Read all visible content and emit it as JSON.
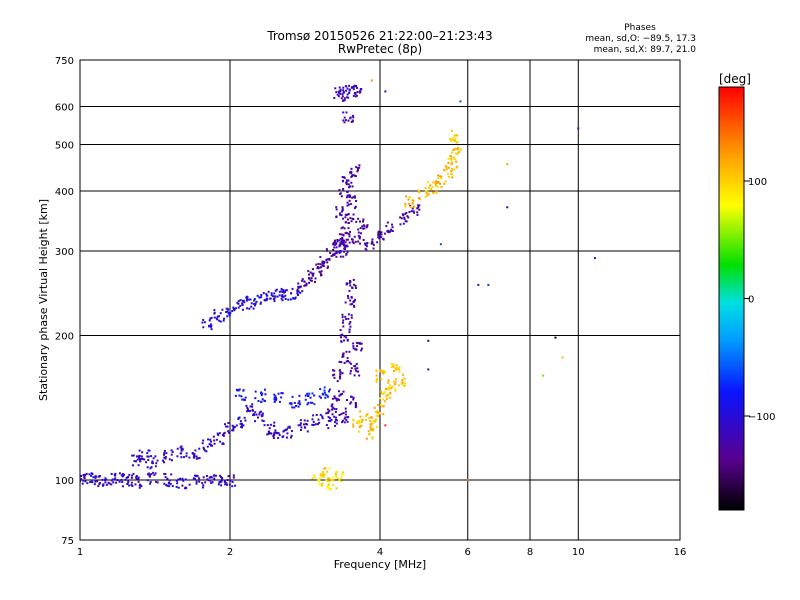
{
  "chart_data": {
    "type": "scatter",
    "title": "Tromsø 20150526 21:22:00–21:23:43",
    "subtitle": "RwPretec (8p)",
    "xlabel": "Frequency [MHz]",
    "ylabel": "Stationary phase Virtual Height [km]",
    "x_scale": "log",
    "y_scale": "log",
    "xlim": [
      1,
      16
    ],
    "ylim": [
      75,
      750
    ],
    "x_ticks": [
      1,
      2,
      4,
      6,
      8,
      10,
      16
    ],
    "y_ticks": [
      75,
      100,
      200,
      300,
      400,
      500,
      600,
      750
    ],
    "grid": true,
    "phases_box": {
      "title": "Phases",
      "line1": "mean, sd,O: −89.5, 17.3",
      "line2": "mean, sd,X:  89.7, 21.0"
    },
    "colorbar": {
      "label": "[deg]",
      "range": [
        -180,
        180
      ],
      "ticks": [
        100,
        0,
        -100
      ],
      "tick_labels": [
        "100",
        "0",
        "−100"
      ]
    },
    "clusters": [
      {
        "points": [
          [
            1.0,
            100
          ],
          [
            1.05,
            101
          ],
          [
            1.1,
            99
          ],
          [
            1.15,
            100
          ],
          [
            1.2,
            101
          ],
          [
            1.25,
            100
          ],
          [
            1.3,
            99
          ],
          [
            1.4,
            101
          ],
          [
            1.5,
            100
          ],
          [
            1.6,
            99
          ],
          [
            1.7,
            100
          ],
          [
            1.8,
            99
          ],
          [
            1.9,
            100
          ],
          [
            2.0,
            100
          ]
        ],
        "phase": -110
      },
      {
        "points": [
          [
            1.3,
            110
          ],
          [
            1.35,
            112
          ],
          [
            1.4,
            109
          ],
          [
            1.5,
            112
          ],
          [
            1.6,
            115
          ],
          [
            1.7,
            113
          ],
          [
            1.8,
            118
          ],
          [
            1.9,
            122
          ],
          [
            2.0,
            128
          ],
          [
            2.1,
            132
          ],
          [
            2.2,
            140
          ],
          [
            2.3,
            136
          ],
          [
            2.4,
            128
          ],
          [
            2.5,
            124
          ],
          [
            2.6,
            126
          ],
          [
            2.8,
            130
          ],
          [
            3.0,
            133
          ],
          [
            3.2,
            132
          ]
        ],
        "phase": -112
      },
      {
        "points": [
          [
            2.1,
            150
          ],
          [
            2.3,
            150
          ],
          [
            2.5,
            148
          ],
          [
            2.7,
            146
          ],
          [
            2.9,
            148
          ],
          [
            3.1,
            152
          ]
        ],
        "phase": -85
      },
      {
        "points": [
          [
            1.8,
            212
          ],
          [
            1.9,
            220
          ],
          [
            2.0,
            226
          ],
          [
            2.1,
            232
          ],
          [
            2.2,
            234
          ],
          [
            2.3,
            238
          ],
          [
            2.4,
            240
          ],
          [
            2.5,
            242
          ],
          [
            2.6,
            244
          ],
          [
            2.7,
            246
          ]
        ],
        "phase": -100
      },
      {
        "points": [
          [
            2.8,
            255
          ],
          [
            2.9,
            265
          ],
          [
            3.0,
            275
          ],
          [
            3.1,
            285
          ],
          [
            3.2,
            295
          ],
          [
            3.3,
            305
          ],
          [
            3.4,
            312
          ]
        ],
        "phase": -128
      },
      {
        "points": [
          [
            3.2,
            140
          ],
          [
            3.3,
            150
          ],
          [
            3.3,
            165
          ],
          [
            3.4,
            180
          ],
          [
            3.4,
            200
          ],
          [
            3.45,
            215
          ],
          [
            3.5,
            235
          ],
          [
            3.5,
            255
          ],
          [
            3.55,
            170
          ],
          [
            3.6,
            190
          ],
          [
            3.4,
            135
          ],
          [
            3.5,
            145
          ]
        ],
        "phase": -125
      },
      {
        "points": [
          [
            3.3,
            310
          ],
          [
            3.4,
            330
          ],
          [
            3.35,
            360
          ],
          [
            3.5,
            380
          ],
          [
            3.4,
            400
          ],
          [
            3.45,
            420
          ],
          [
            3.5,
            350
          ],
          [
            3.6,
            320
          ],
          [
            3.7,
            340
          ],
          [
            3.8,
            310
          ],
          [
            4.0,
            320
          ],
          [
            4.2,
            335
          ],
          [
            4.5,
            350
          ],
          [
            4.7,
            365
          ],
          [
            3.55,
            440
          ],
          [
            3.4,
            300
          ]
        ],
        "phase": -125
      },
      {
        "points": [
          [
            3.3,
            640
          ],
          [
            3.4,
            635
          ],
          [
            3.5,
            645
          ],
          [
            3.6,
            640
          ],
          [
            3.45,
            570
          ]
        ],
        "phase": -118
      },
      {
        "points": [
          [
            3.8,
            125
          ],
          [
            3.9,
            132
          ],
          [
            4.0,
            140
          ],
          [
            4.1,
            150
          ],
          [
            4.2,
            158
          ],
          [
            4.0,
            165
          ],
          [
            4.3,
            170
          ],
          [
            4.4,
            162
          ],
          [
            3.6,
            130
          ],
          [
            3.7,
            135
          ]
        ],
        "phase": 105
      },
      {
        "points": [
          [
            3.0,
            100
          ],
          [
            3.1,
            103
          ],
          [
            3.2,
            98
          ],
          [
            3.3,
            101
          ]
        ],
        "phase": 95
      },
      {
        "points": [
          [
            4.6,
            380
          ],
          [
            4.9,
            395
          ],
          [
            5.1,
            405
          ],
          [
            5.3,
            420
          ],
          [
            5.5,
            440
          ],
          [
            5.6,
            460
          ],
          [
            5.7,
            480
          ],
          [
            5.6,
            520
          ]
        ],
        "phase": 110
      }
    ],
    "outliers": [
      [
        9.0,
        198,
        -175
      ],
      [
        9.3,
        180,
        110
      ],
      [
        8.5,
        165,
        50
      ],
      [
        7.2,
        455,
        120
      ],
      [
        7.2,
        370,
        -128
      ],
      [
        6.3,
        255,
        -118
      ],
      [
        6.6,
        255,
        -70
      ],
      [
        10.0,
        540,
        -130
      ],
      [
        10.8,
        290,
        -95
      ],
      [
        5.3,
        310,
        -60
      ],
      [
        5.0,
        170,
        -120
      ],
      [
        5.0,
        195,
        -150
      ],
      [
        6.0,
        100,
        140
      ],
      [
        4.1,
        130,
        165
      ],
      [
        5.8,
        615,
        -60
      ],
      [
        3.85,
        680,
        130
      ],
      [
        4.1,
        645,
        -125
      ]
    ]
  }
}
